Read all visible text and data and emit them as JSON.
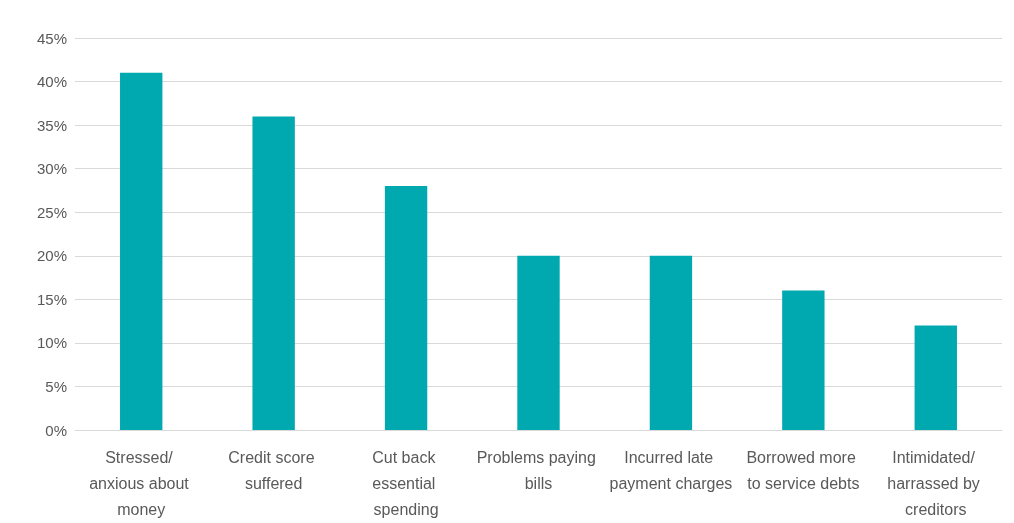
{
  "chart_data": {
    "type": "bar",
    "categories": [
      "Stressed/ anxious about money",
      "Credit score suffered",
      "Cut back essential spending",
      "Problems paying bills",
      "Incurred late payment charges",
      "Borrowed more to service debts",
      "Intimidated/ harrassed by creditors"
    ],
    "values": [
      41,
      36,
      28,
      20,
      20,
      16,
      12
    ],
    "color": "#00a9b0",
    "ylim": [
      0,
      45
    ],
    "yticks": [
      {
        "value": 0,
        "label": "0%"
      },
      {
        "value": 5,
        "label": "5%"
      },
      {
        "value": 10,
        "label": "10%"
      },
      {
        "value": 15,
        "label": "15%"
      },
      {
        "value": 20,
        "label": "20%"
      },
      {
        "value": 25,
        "label": "25%"
      },
      {
        "value": 30,
        "label": "30%"
      },
      {
        "value": 35,
        "label": "35%"
      },
      {
        "value": 40,
        "label": "40%"
      },
      {
        "value": 45,
        "label": "45%"
      }
    ],
    "grid": "y"
  }
}
